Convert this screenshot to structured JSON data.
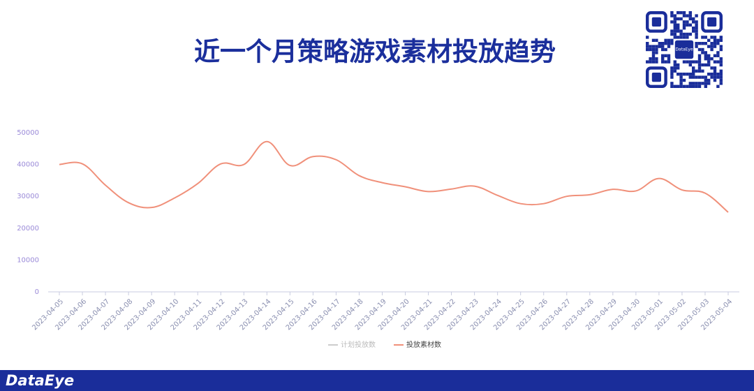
{
  "chart_data": {
    "type": "line",
    "title": "近一个月策略游戏素材投放趋势",
    "categories": [
      "2023-04-05",
      "2023-04-06",
      "2023-04-07",
      "2023-04-08",
      "2023-04-09",
      "2023-04-10",
      "2023-04-11",
      "2023-04-12",
      "2023-04-13",
      "2023-04-14",
      "2023-04-15",
      "2023-04-16",
      "2023-04-17",
      "2023-04-18",
      "2023-04-19",
      "2023-04-20",
      "2023-04-21",
      "2023-04-22",
      "2023-04-23",
      "2023-04-24",
      "2023-04-25",
      "2023-04-26",
      "2023-04-27",
      "2023-04-28",
      "2023-04-29",
      "2023-04-30",
      "2023-05-01",
      "2023-05-02",
      "2023-05-03",
      "2023-05-04"
    ],
    "series": [
      {
        "name": "计划投放数",
        "color": "#cccccc",
        "values": [
          null,
          null,
          null,
          null,
          null,
          null,
          null,
          null,
          null,
          null,
          null,
          null,
          null,
          null,
          null,
          null,
          null,
          null,
          null,
          null,
          null,
          null,
          null,
          null,
          null,
          null,
          null,
          null,
          null,
          null
        ]
      },
      {
        "name": "投放素材数",
        "color": "#f0907a",
        "values": [
          40000,
          40200,
          33500,
          28000,
          26500,
          29500,
          34000,
          40200,
          40000,
          47200,
          39700,
          42500,
          41500,
          36500,
          34300,
          33000,
          31500,
          32300,
          33200,
          30300,
          27700,
          27700,
          30000,
          30500,
          32200,
          31700,
          35600,
          32000,
          31000,
          25000
        ]
      }
    ],
    "ylim": [
      0,
      50000
    ],
    "yticks": [
      0,
      10000,
      20000,
      30000,
      40000,
      50000
    ],
    "grid": false,
    "legend": "bottom"
  },
  "qr_label": "DataEye",
  "brand": "DataEye"
}
